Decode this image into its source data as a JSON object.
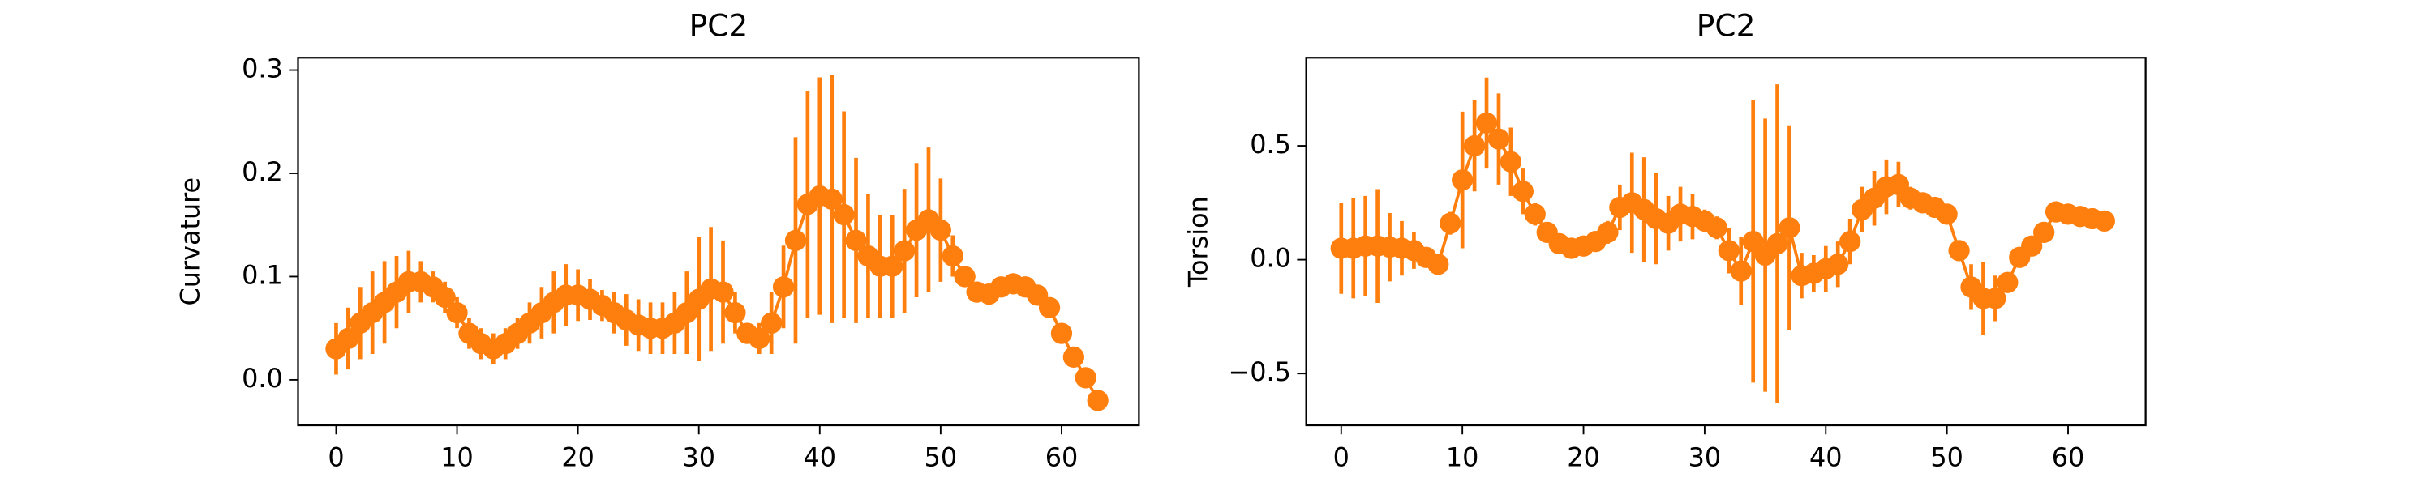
{
  "chart_data": [
    {
      "type": "errorbar",
      "title": "PC2",
      "ylabel": "Curvature",
      "x": [
        0,
        1,
        2,
        3,
        4,
        5,
        6,
        7,
        8,
        9,
        10,
        11,
        12,
        13,
        14,
        15,
        16,
        17,
        18,
        19,
        20,
        21,
        22,
        23,
        24,
        25,
        26,
        27,
        28,
        29,
        30,
        31,
        32,
        33,
        34,
        35,
        36,
        37,
        38,
        39,
        40,
        41,
        42,
        43,
        44,
        45,
        46,
        47,
        48,
        49,
        50,
        51,
        52,
        53,
        54,
        55,
        56,
        57,
        58,
        59,
        60,
        61,
        62,
        63
      ],
      "series": [
        {
          "color": "#ff7f0e",
          "values": [
            0.03,
            0.04,
            0.055,
            0.065,
            0.075,
            0.085,
            0.095,
            0.095,
            0.09,
            0.08,
            0.065,
            0.045,
            0.035,
            0.03,
            0.035,
            0.045,
            0.055,
            0.065,
            0.075,
            0.082,
            0.082,
            0.078,
            0.072,
            0.065,
            0.058,
            0.053,
            0.05,
            0.05,
            0.055,
            0.065,
            0.078,
            0.088,
            0.085,
            0.065,
            0.045,
            0.04,
            0.055,
            0.09,
            0.135,
            0.17,
            0.178,
            0.175,
            0.16,
            0.135,
            0.12,
            0.11,
            0.11,
            0.125,
            0.145,
            0.155,
            0.145,
            0.12,
            0.1,
            0.085,
            0.083,
            0.09,
            0.093,
            0.09,
            0.082,
            0.07,
            0.045,
            0.022,
            0.002,
            -0.02
          ],
          "errors": [
            0.025,
            0.03,
            0.035,
            0.04,
            0.04,
            0.035,
            0.03,
            0.02,
            0.015,
            0.015,
            0.015,
            0.015,
            0.015,
            0.015,
            0.015,
            0.015,
            0.02,
            0.025,
            0.03,
            0.03,
            0.025,
            0.02,
            0.015,
            0.02,
            0.025,
            0.025,
            0.025,
            0.025,
            0.03,
            0.04,
            0.06,
            0.06,
            0.05,
            0.02,
            0.01,
            0.015,
            0.03,
            0.04,
            0.1,
            0.11,
            0.115,
            0.12,
            0.1,
            0.08,
            0.06,
            0.05,
            0.05,
            0.06,
            0.065,
            0.07,
            0.05,
            0.02,
            0.01,
            0.01,
            0.01,
            0.01,
            0.01,
            0.01,
            0.01,
            0.005,
            0,
            0,
            0,
            0
          ]
        }
      ],
      "xlim": [
        -3.15,
        66.4
      ],
      "ylim": [
        -0.044,
        0.312
      ],
      "xticks": [
        0,
        10,
        20,
        30,
        40,
        50,
        60
      ],
      "yticks": [
        {
          "value": 0,
          "label": "0.0"
        },
        0.1,
        0.2,
        0.3
      ]
    },
    {
      "type": "errorbar",
      "title": "PC2",
      "ylabel": "Torsion",
      "x": [
        0,
        1,
        2,
        3,
        4,
        5,
        6,
        7,
        8,
        9,
        10,
        11,
        12,
        13,
        14,
        15,
        16,
        17,
        18,
        19,
        20,
        21,
        22,
        23,
        24,
        25,
        26,
        27,
        28,
        29,
        30,
        31,
        32,
        33,
        34,
        35,
        36,
        37,
        38,
        39,
        40,
        41,
        42,
        43,
        44,
        45,
        46,
        47,
        48,
        49,
        50,
        51,
        52,
        53,
        54,
        55,
        56,
        57,
        58,
        59,
        60,
        61,
        62,
        63
      ],
      "series": [
        {
          "color": "#ff7f0e",
          "values": [
            0.05,
            0.05,
            0.06,
            0.06,
            0.055,
            0.05,
            0.04,
            0.01,
            -0.02,
            0.16,
            0.35,
            0.5,
            0.6,
            0.53,
            0.43,
            0.3,
            0.2,
            0.12,
            0.07,
            0.05,
            0.06,
            0.08,
            0.12,
            0.23,
            0.25,
            0.22,
            0.18,
            0.16,
            0.2,
            0.19,
            0.17,
            0.14,
            0.04,
            -0.05,
            0.08,
            0.02,
            0.07,
            0.14,
            -0.07,
            -0.06,
            -0.04,
            -0.02,
            0.08,
            0.22,
            0.27,
            0.32,
            0.33,
            0.27,
            0.25,
            0.23,
            0.2,
            0.04,
            -0.12,
            -0.17,
            -0.17,
            -0.1,
            0.01,
            0.06,
            0.12,
            0.21,
            0.2,
            0.19,
            0.18,
            0.17
          ],
          "errors": [
            0.2,
            0.22,
            0.22,
            0.25,
            0.15,
            0.12,
            0.08,
            0.03,
            0.02,
            0.05,
            0.3,
            0.2,
            0.2,
            0.2,
            0.15,
            0.1,
            0.05,
            0.04,
            0.03,
            0.02,
            0.02,
            0.03,
            0.05,
            0.1,
            0.22,
            0.23,
            0.2,
            0.12,
            0.12,
            0.1,
            0.05,
            0.05,
            0.1,
            0.15,
            0.62,
            0.6,
            0.7,
            0.45,
            0.1,
            0.08,
            0.1,
            0.1,
            0.1,
            0.1,
            0.12,
            0.12,
            0.1,
            0.05,
            0.03,
            0.02,
            0.03,
            0.04,
            0.1,
            0.16,
            0.1,
            0.03,
            0.02,
            0.02,
            0.02,
            0,
            0,
            0,
            0,
            0
          ]
        }
      ],
      "xlim": [
        -2.89,
        66.4
      ],
      "ylim": [
        -0.727,
        0.887
      ],
      "xticks": [
        0,
        10,
        20,
        30,
        40,
        50,
        60
      ],
      "yticks": [
        {
          "value": -0.5,
          "label": "−0.5"
        },
        {
          "value": 0,
          "label": "0.0"
        },
        0.5
      ]
    }
  ]
}
